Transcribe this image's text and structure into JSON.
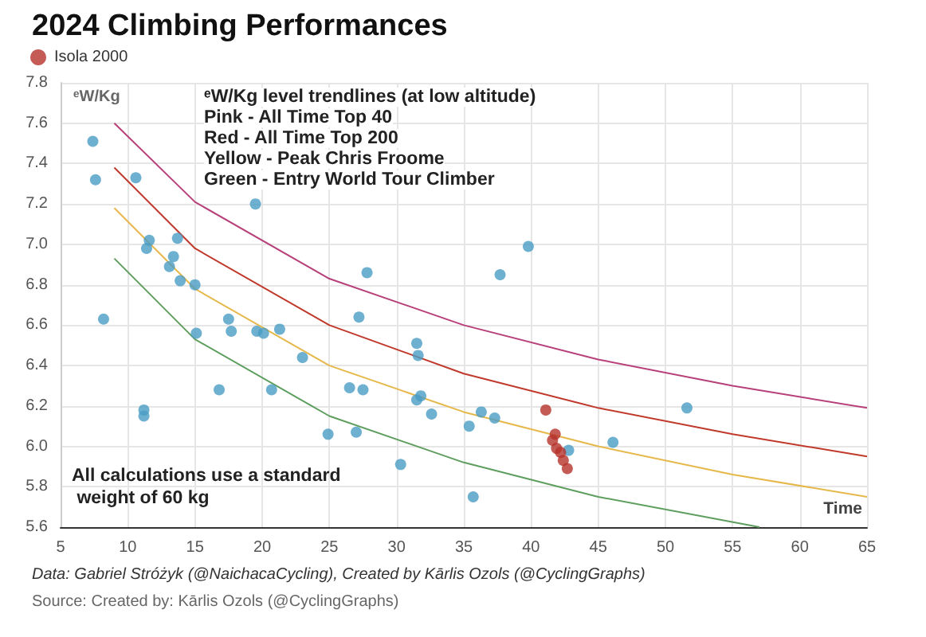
{
  "chart_data": {
    "type": "scatter",
    "title": "2024 Climbing Performances",
    "ylabel": "ᵉW/Kg",
    "xlabel": "Time",
    "xlim": [
      5,
      65
    ],
    "xticks": [
      5,
      10,
      15,
      20,
      25,
      30,
      35,
      40,
      45,
      50,
      55,
      60,
      65
    ],
    "ylim": [
      5.6,
      7.8
    ],
    "yticks": [
      5.6,
      5.8,
      {
        "value": 6,
        "label": "6.0"
      },
      6.2,
      6.4,
      6.6,
      6.8,
      {
        "value": 7,
        "label": "7.0"
      },
      7.2,
      7.4,
      7.6,
      7.8
    ],
    "grid": true,
    "legend": "top left",
    "marker": "circle",
    "series": [
      {
        "type": "line",
        "color": "#b8407a",
        "marker": "none",
        "x": [
          9,
          15,
          25,
          35,
          45,
          55,
          65
        ],
        "values": [
          7.6,
          7.21,
          6.83,
          6.6,
          6.43,
          6.3,
          6.19
        ]
      },
      {
        "type": "line",
        "color": "#c0392b",
        "marker": "none",
        "x": [
          9,
          15,
          25,
          35,
          45,
          55,
          65
        ],
        "values": [
          7.38,
          6.98,
          6.6,
          6.36,
          6.19,
          6.06,
          5.95
        ]
      },
      {
        "type": "line",
        "color": "#e6b84a",
        "marker": "none",
        "x": [
          9,
          15,
          25,
          35,
          45,
          55,
          65
        ],
        "values": [
          7.18,
          6.78,
          6.4,
          6.17,
          6.0,
          5.86,
          5.75
        ]
      },
      {
        "type": "line",
        "color": "#5e9e5e",
        "marker": "none",
        "x": [
          9,
          15,
          25,
          35,
          45,
          57
        ],
        "values": [
          6.93,
          6.53,
          6.15,
          5.92,
          5.75,
          5.6
        ]
      },
      {
        "color": "#4a9cc4",
        "x": [
          7.4,
          7.6,
          10.6,
          19.5,
          11.6,
          13.7,
          11.4,
          13.4,
          13.1,
          13.9,
          15.0,
          8.2,
          17.5,
          15.1,
          17.7,
          19.6,
          20.1,
          21.3,
          23.0,
          16.8,
          20.7,
          27.8,
          27.2,
          26.5,
          27.5,
          31.5,
          31.6,
          31.8,
          31.5,
          32.6,
          11.2,
          11.2,
          24.9,
          27.0,
          30.3,
          35.4,
          35.7,
          39.8,
          36.3,
          37.3,
          46.1,
          51.6,
          42.8,
          37.7
        ],
        "values": [
          7.51,
          7.32,
          7.33,
          7.2,
          7.02,
          7.03,
          6.98,
          6.94,
          6.89,
          6.82,
          6.8,
          6.63,
          6.63,
          6.56,
          6.57,
          6.57,
          6.56,
          6.58,
          6.44,
          6.28,
          6.28,
          6.86,
          6.64,
          6.29,
          6.28,
          6.51,
          6.45,
          6.25,
          6.23,
          6.16,
          6.18,
          6.15,
          6.06,
          6.07,
          5.91,
          6.1,
          5.75,
          6.99,
          6.17,
          6.14,
          6.02,
          6.19,
          5.98,
          6.85
        ]
      },
      {
        "name": "Isola 2000",
        "color": "#b5322a",
        "x": [
          41.1,
          41.8,
          41.6,
          41.9,
          42.2,
          42.4,
          42.7
        ],
        "values": [
          6.18,
          6.06,
          6.03,
          5.99,
          5.97,
          5.93,
          5.89
        ]
      }
    ],
    "annotations": [
      "ᵉW/Kg level trendlines (at low altitude)",
      "Pink - All Time Top 40",
      "Red - All Time Top 200",
      "Yellow - Peak Chris Froome",
      "Green - Entry World Tour Climber",
      "All calculations use a standard weight of 60 kg",
      "Data: Gabriel Stróżyk (@NaichacaCycling), Created by Kārlis Ozols (@CyclingGraphs)",
      "Source: Created by: Kārlis Ozols (@CyclingGraphs)"
    ]
  }
}
